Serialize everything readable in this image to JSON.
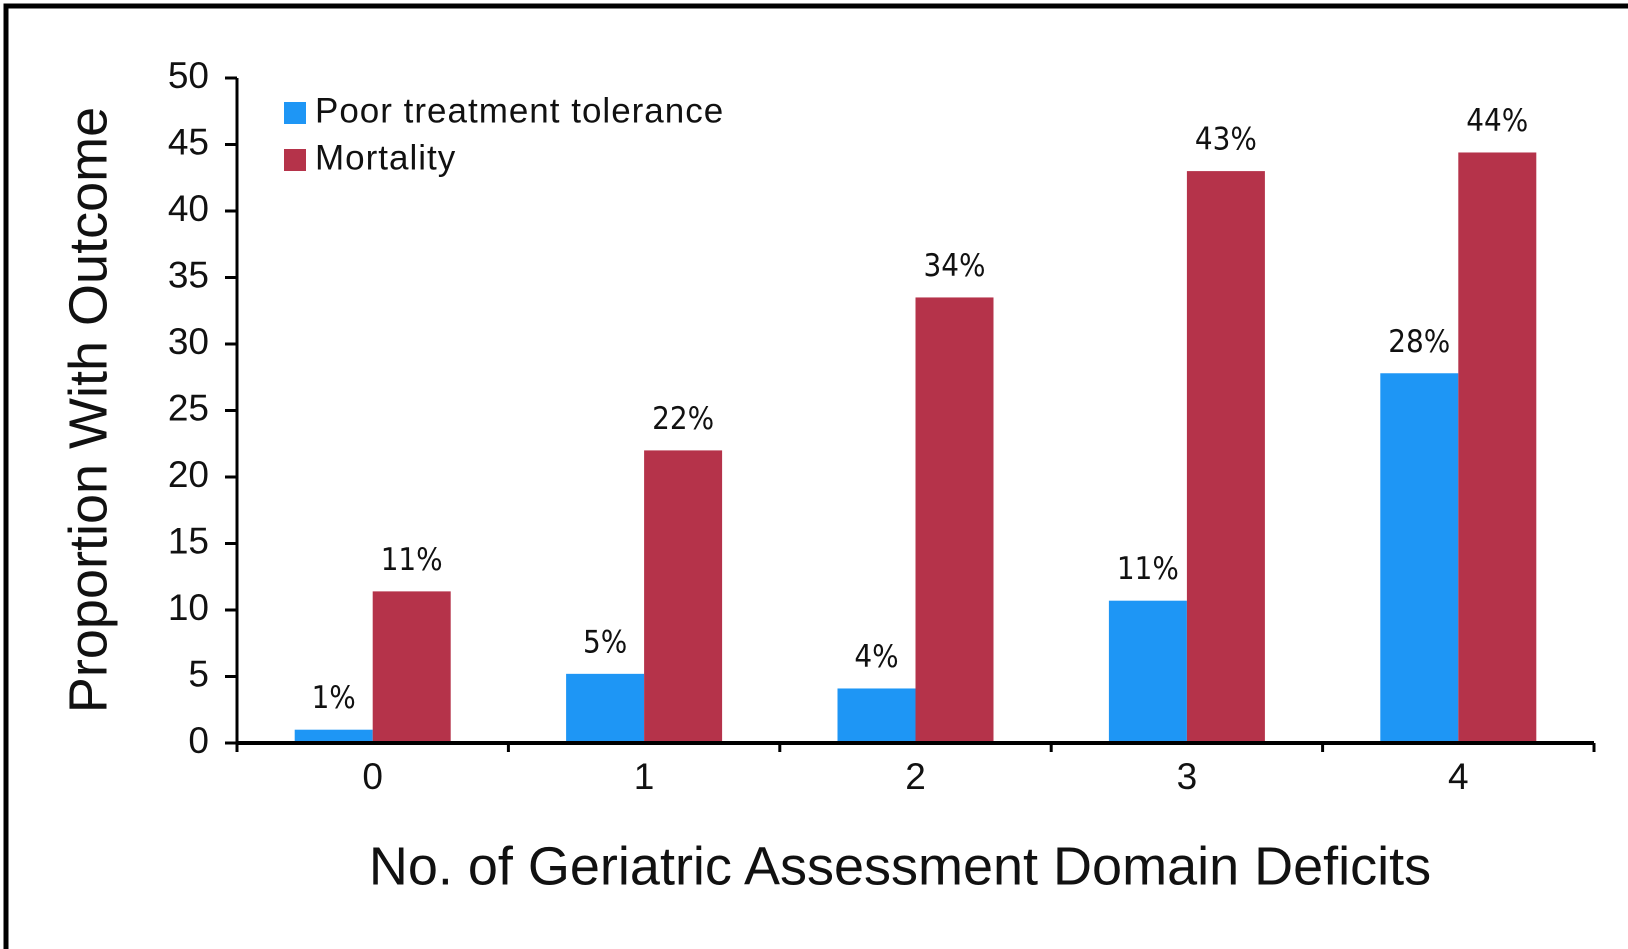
{
  "chart_data": {
    "type": "bar",
    "y_label": "Proportion With Outcome",
    "x_label": "No. of Geriatric Assessment Domain Deficits",
    "categories": [
      "0",
      "1",
      "2",
      "3",
      "4"
    ],
    "series": [
      {
        "name": "Poor treatment tolerance",
        "color": "#1e96f5",
        "values": [
          1,
          5.2,
          4.1,
          10.7,
          27.8
        ],
        "value_labels": [
          "1%",
          "5%",
          "4%",
          "11%",
          "28%"
        ]
      },
      {
        "name": "Mortality",
        "color": "#b5334a",
        "values": [
          11.4,
          22,
          33.5,
          43,
          44.4
        ],
        "value_labels": [
          "11%",
          "22%",
          "34%",
          "43%",
          "44%"
        ]
      }
    ],
    "ylim": [
      0,
      50
    ],
    "yticks": [
      0,
      5,
      10,
      15,
      20,
      25,
      30,
      35,
      40,
      45,
      50
    ],
    "grid": false,
    "legend": "upper left"
  }
}
